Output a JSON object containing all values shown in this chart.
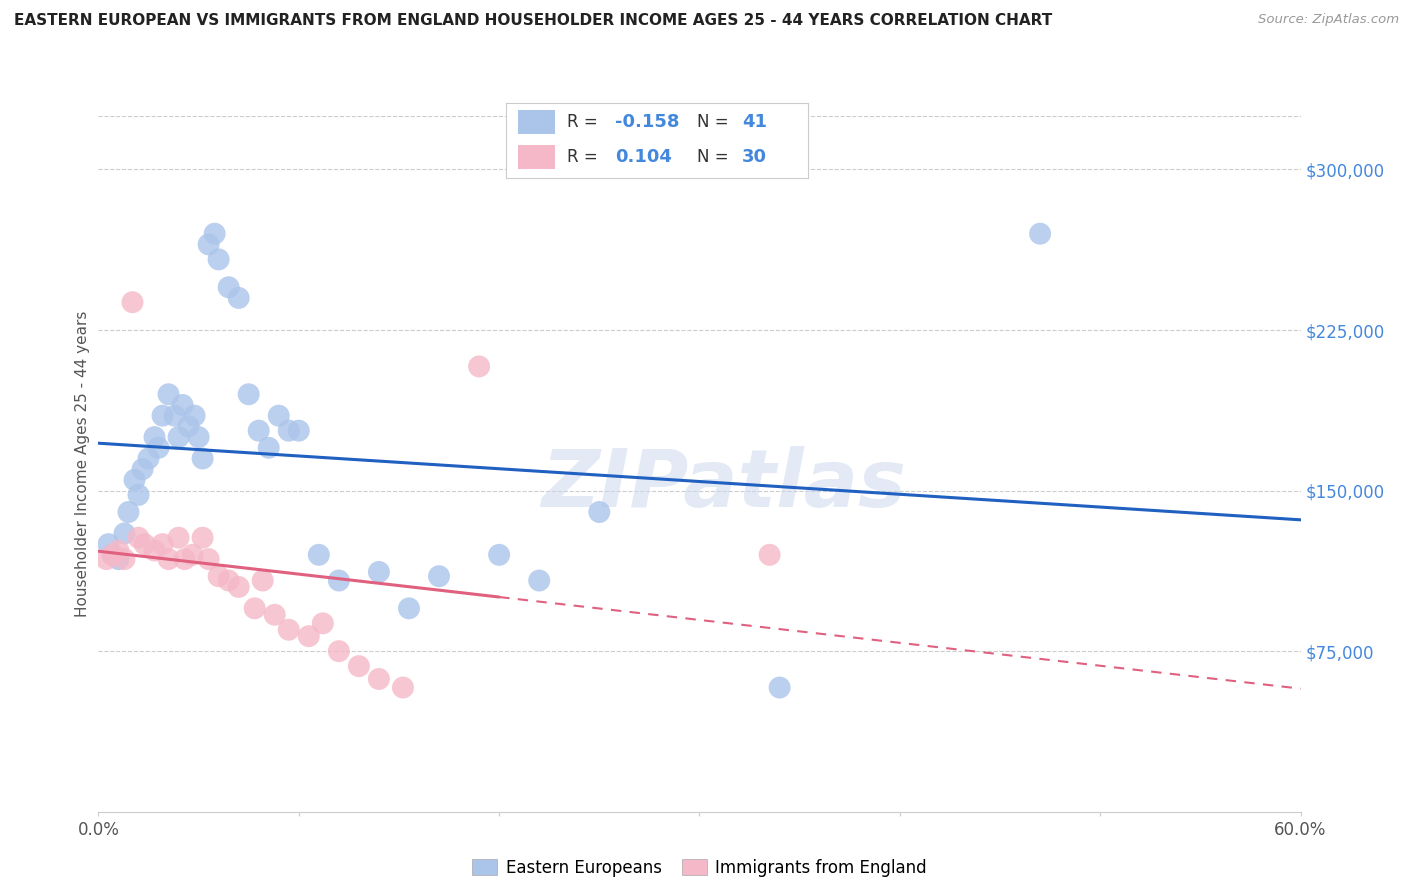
{
  "title": "EASTERN EUROPEAN VS IMMIGRANTS FROM ENGLAND HOUSEHOLDER INCOME AGES 25 - 44 YEARS CORRELATION CHART",
  "source": "Source: ZipAtlas.com",
  "ylabel": "Householder Income Ages 25 - 44 years",
  "xlim": [
    0.0,
    0.6
  ],
  "ylim": [
    0,
    325000
  ],
  "yticks": [
    75000,
    150000,
    225000,
    300000
  ],
  "ytick_labels": [
    "$75,000",
    "$150,000",
    "$225,000",
    "$300,000"
  ],
  "xticks": [
    0.0,
    0.1,
    0.2,
    0.3,
    0.4,
    0.5,
    0.6
  ],
  "xtick_labels": [
    "0.0%",
    "",
    "",
    "",
    "",
    "",
    "60.0%"
  ],
  "blue_R": "-0.158",
  "blue_N": "41",
  "pink_R": "0.104",
  "pink_N": "30",
  "blue_color": "#aac4ea",
  "pink_color": "#f5b8c8",
  "blue_line_color": "#2060c0",
  "pink_line_color": "#e06080",
  "pink_dash_color": "#e06080",
  "watermark": "ZIPatlas",
  "blue_scatter_x": [
    0.005,
    0.007,
    0.01,
    0.013,
    0.015,
    0.018,
    0.02,
    0.022,
    0.025,
    0.028,
    0.03,
    0.032,
    0.035,
    0.038,
    0.04,
    0.042,
    0.045,
    0.048,
    0.05,
    0.052,
    0.055,
    0.058,
    0.06,
    0.065,
    0.07,
    0.075,
    0.08,
    0.085,
    0.09,
    0.095,
    0.1,
    0.11,
    0.12,
    0.14,
    0.155,
    0.17,
    0.2,
    0.22,
    0.25,
    0.34,
    0.47
  ],
  "blue_scatter_y": [
    125000,
    120000,
    118000,
    130000,
    140000,
    155000,
    148000,
    160000,
    165000,
    175000,
    170000,
    185000,
    195000,
    185000,
    175000,
    190000,
    180000,
    185000,
    175000,
    165000,
    265000,
    270000,
    258000,
    245000,
    240000,
    195000,
    178000,
    170000,
    185000,
    178000,
    178000,
    120000,
    108000,
    112000,
    95000,
    110000,
    120000,
    108000,
    140000,
    58000,
    270000
  ],
  "pink_scatter_x": [
    0.004,
    0.007,
    0.01,
    0.013,
    0.017,
    0.02,
    0.023,
    0.028,
    0.032,
    0.035,
    0.04,
    0.043,
    0.047,
    0.052,
    0.055,
    0.06,
    0.065,
    0.07,
    0.078,
    0.082,
    0.088,
    0.095,
    0.105,
    0.112,
    0.12,
    0.13,
    0.14,
    0.152,
    0.19,
    0.335
  ],
  "pink_scatter_y": [
    118000,
    120000,
    122000,
    118000,
    238000,
    128000,
    125000,
    122000,
    125000,
    118000,
    128000,
    118000,
    120000,
    128000,
    118000,
    110000,
    108000,
    105000,
    95000,
    108000,
    92000,
    85000,
    82000,
    88000,
    75000,
    68000,
    62000,
    58000,
    208000,
    120000
  ],
  "background_color": "#ffffff",
  "grid_color": "#cccccc"
}
